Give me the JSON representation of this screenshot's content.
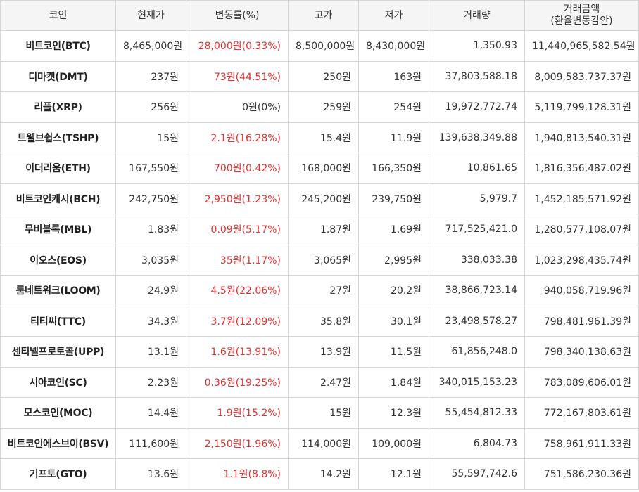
{
  "headers": {
    "coin": "코인",
    "price": "현재가",
    "change": "변동률(%)",
    "high": "고가",
    "low": "저가",
    "volume": "거래량",
    "amount_line1": "거래금액",
    "amount_line2": "(환율변동감안)"
  },
  "colors": {
    "up": "#e03030",
    "flat": "#333333",
    "header_bg": "#f5f5f5",
    "border": "#d7d7d7"
  },
  "rows": [
    {
      "name": "비트코인(BTC)",
      "price": "8,465,000원",
      "change": "28,000원(0.33%)",
      "dir": "up",
      "high": "8,500,000원",
      "low": "8,430,000원",
      "volume": "1,350.93",
      "amount": "11,440,965,582.54원"
    },
    {
      "name": "디마켓(DMT)",
      "price": "237원",
      "change": "73원(44.51%)",
      "dir": "up",
      "high": "250원",
      "low": "163원",
      "volume": "37,803,588.18",
      "amount": "8,009,583,737.37원"
    },
    {
      "name": "리플(XRP)",
      "price": "256원",
      "change": "0원(0%)",
      "dir": "flat",
      "high": "259원",
      "low": "254원",
      "volume": "19,972,772.74",
      "amount": "5,119,799,128.31원"
    },
    {
      "name": "트웰브쉽스(TSHP)",
      "price": "15원",
      "change": "2.1원(16.28%)",
      "dir": "up",
      "high": "15.4원",
      "low": "11.9원",
      "volume": "139,638,349.88",
      "amount": "1,940,813,540.31원"
    },
    {
      "name": "이더리움(ETH)",
      "price": "167,550원",
      "change": "700원(0.42%)",
      "dir": "up",
      "high": "168,000원",
      "low": "166,350원",
      "volume": "10,861.65",
      "amount": "1,816,356,487.02원"
    },
    {
      "name": "비트코인캐시(BCH)",
      "price": "242,750원",
      "change": "2,950원(1.23%)",
      "dir": "up",
      "high": "245,200원",
      "low": "239,750원",
      "volume": "5,979.7",
      "amount": "1,452,185,571.92원"
    },
    {
      "name": "무비블록(MBL)",
      "price": "1.83원",
      "change": "0.09원(5.17%)",
      "dir": "up",
      "high": "1.87원",
      "low": "1.69원",
      "volume": "717,525,421.0",
      "amount": "1,280,577,108.07원"
    },
    {
      "name": "이오스(EOS)",
      "price": "3,035원",
      "change": "35원(1.17%)",
      "dir": "up",
      "high": "3,065원",
      "low": "2,995원",
      "volume": "338,033.38",
      "amount": "1,023,298,435.74원"
    },
    {
      "name": "룸네트워크(LOOM)",
      "price": "24.9원",
      "change": "4.5원(22.06%)",
      "dir": "up",
      "high": "27원",
      "low": "20.2원",
      "volume": "38,866,723.14",
      "amount": "940,058,719.96원"
    },
    {
      "name": "티티씨(TTC)",
      "price": "34.3원",
      "change": "3.7원(12.09%)",
      "dir": "up",
      "high": "35.8원",
      "low": "30.1원",
      "volume": "23,498,578.27",
      "amount": "798,481,961.39원"
    },
    {
      "name": "센티넬프로토콜(UPP)",
      "price": "13.1원",
      "change": "1.6원(13.91%)",
      "dir": "up",
      "high": "13.9원",
      "low": "11.5원",
      "volume": "61,856,248.0",
      "amount": "798,340,138.63원"
    },
    {
      "name": "시아코인(SC)",
      "price": "2.23원",
      "change": "0.36원(19.25%)",
      "dir": "up",
      "high": "2.47원",
      "low": "1.84원",
      "volume": "340,015,153.23",
      "amount": "783,089,606.01원"
    },
    {
      "name": "모스코인(MOC)",
      "price": "14.4원",
      "change": "1.9원(15.2%)",
      "dir": "up",
      "high": "15원",
      "low": "12.3원",
      "volume": "55,454,812.33",
      "amount": "772,167,803.61원"
    },
    {
      "name": "비트코인에스브이(BSV)",
      "price": "111,600원",
      "change": "2,150원(1.96%)",
      "dir": "up",
      "high": "114,000원",
      "low": "109,000원",
      "volume": "6,804.73",
      "amount": "758,961,911.33원"
    },
    {
      "name": "기프토(GTO)",
      "price": "13.6원",
      "change": "1.1원(8.8%)",
      "dir": "up",
      "high": "14.2원",
      "low": "12.1원",
      "volume": "55,597,742.6",
      "amount": "751,586,230.36원"
    }
  ]
}
